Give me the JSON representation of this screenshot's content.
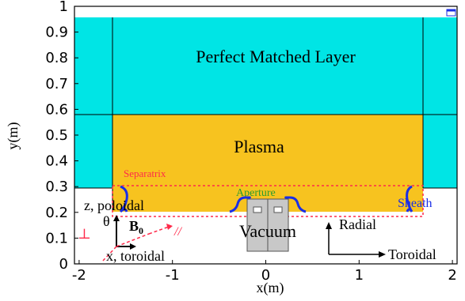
{
  "figure": {
    "xlabel": "x(m)",
    "ylabel": "y(m)",
    "x_ticks": [
      "-2",
      "-1",
      "0",
      "1",
      "2"
    ],
    "y_ticks": [
      "0",
      "0.1",
      "0.2",
      "0.3",
      "0.4",
      "0.5",
      "0.6",
      "0.7",
      "0.8",
      "0.9",
      "1"
    ],
    "xlim": [
      -2.05,
      2.05
    ],
    "ylim": [
      0,
      1
    ],
    "regions": {
      "pml": "Perfect Matched Layer",
      "plasma": "Plasma",
      "vacuum": "Vacuum",
      "separatrix": "Separatrix",
      "aperture": "Aperture",
      "sheath": "Sheath"
    },
    "labels": {
      "z_poloidal": "z, poloidal",
      "theta": "θ",
      "b0": "B",
      "b0_sub": "0",
      "perp": "⊥",
      "parallel": "//",
      "x_toroidal": "x, toroidal",
      "radial": "Radial",
      "toroidal": "Toroidal"
    },
    "colors": {
      "pml": "#00e5e5",
      "plasma": "#f7c31f",
      "separatrix": "#ff2a4a",
      "aperture": "#2e9c2e",
      "sheath": "#1a2ee6",
      "antenna": "#c8c8c8"
    }
  }
}
